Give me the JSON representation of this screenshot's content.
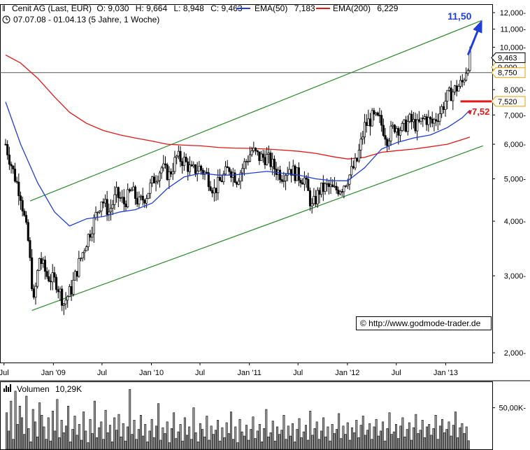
{
  "header": {
    "line1": {
      "instrument": "Cenit AG (Last, EUR)",
      "open": "O: 9,030",
      "high": "H: 9,664",
      "low": "L: 8,948",
      "close": "C: 9,463",
      "ema50_label": "EMA(50)",
      "ema50_value": "7,183",
      "ema200_label": "EMA(200)",
      "ema200_value": "6,229"
    },
    "line2": "07.07.08 - 01.04.13 (5 Jahre, 1 Woche)"
  },
  "volume_header": {
    "label": "Volumen",
    "value": "10,29K"
  },
  "watermark": "© http://www.godmode-trader.de",
  "annotations": {
    "target": "11,50",
    "support": "7,52"
  },
  "price_labels": {
    "last": "9,463",
    "hidden": "9,000",
    "resistance": "8,750",
    "support": "7,520"
  },
  "colors": {
    "ema50": "#1f3fd6",
    "ema200": "#e01818",
    "channel": "#2a8a2a",
    "target_arrow": "#1f3fd6",
    "support_marker": "#e01818",
    "price_label_border": "#e0a000",
    "bars": "#000000",
    "volume_fill": "#a0a0a0"
  },
  "chart_data": {
    "type": "candlestick",
    "scale": "log",
    "ylim": [
      1.9,
      12.5
    ],
    "y_ticks": [
      "2,000-",
      "3,000-",
      "4,000-",
      "5,000-",
      "6,000-",
      "7,000-",
      "8,000-",
      "9,000-",
      "10,000-",
      "11,000-",
      "12,000-"
    ],
    "y_tick_values": [
      2,
      3,
      4,
      5,
      6,
      7,
      8,
      9,
      10,
      11,
      12
    ],
    "x_ticks": [
      "Jul",
      "Jan '09",
      "Jul",
      "Jan '10",
      "Jul",
      "Jan '11",
      "Jul",
      "Jan '12",
      "Jul",
      "Jan '13"
    ],
    "x_tick_dates": [
      "2008-07-01",
      "2009-01-01",
      "2009-07-01",
      "2010-01-01",
      "2010-07-01",
      "2011-01-01",
      "2011-07-01",
      "2012-01-01",
      "2012-07-01",
      "2013-01-01"
    ],
    "date_range": [
      "2008-07-07",
      "2013-04-01"
    ],
    "close_path": [
      [
        "2008-07-07",
        6.0
      ],
      [
        "2008-08-04",
        5.2
      ],
      [
        "2008-09-01",
        4.6
      ],
      [
        "2008-09-29",
        3.6
      ],
      [
        "2008-10-20",
        2.6
      ],
      [
        "2008-11-10",
        3.3
      ],
      [
        "2008-12-08",
        3.0
      ],
      [
        "2009-01-12",
        2.9
      ],
      [
        "2009-02-09",
        2.6
      ],
      [
        "2009-03-09",
        2.8
      ],
      [
        "2009-04-06",
        3.2
      ],
      [
        "2009-05-04",
        3.6
      ],
      [
        "2009-06-01",
        4.0
      ],
      [
        "2009-06-29",
        4.5
      ],
      [
        "2009-07-27",
        4.2
      ],
      [
        "2009-08-24",
        4.6
      ],
      [
        "2009-09-21",
        4.4
      ],
      [
        "2009-10-19",
        4.7
      ],
      [
        "2009-11-16",
        4.4
      ],
      [
        "2009-12-14",
        4.6
      ],
      [
        "2010-01-11",
        5.0
      ],
      [
        "2010-02-08",
        5.3
      ],
      [
        "2010-03-08",
        5.1
      ],
      [
        "2010-04-05",
        5.6
      ],
      [
        "2010-05-03",
        5.5
      ],
      [
        "2010-05-31",
        5.2
      ],
      [
        "2010-06-28",
        5.3
      ],
      [
        "2010-07-26",
        5.1
      ],
      [
        "2010-08-23",
        4.7
      ],
      [
        "2010-09-20",
        5.0
      ],
      [
        "2010-10-18",
        5.3
      ],
      [
        "2010-11-15",
        5.0
      ],
      [
        "2010-12-13",
        5.4
      ],
      [
        "2011-01-10",
        5.8
      ],
      [
        "2011-02-07",
        5.6
      ],
      [
        "2011-03-07",
        5.6
      ],
      [
        "2011-04-04",
        5.3
      ],
      [
        "2011-05-02",
        5.1
      ],
      [
        "2011-05-30",
        5.3
      ],
      [
        "2011-06-27",
        5.1
      ],
      [
        "2011-07-25",
        5.0
      ],
      [
        "2011-08-22",
        4.3
      ],
      [
        "2011-09-19",
        4.7
      ],
      [
        "2011-10-17",
        4.8
      ],
      [
        "2011-11-14",
        4.7
      ],
      [
        "2011-12-12",
        4.8
      ],
      [
        "2012-01-09",
        5.1
      ],
      [
        "2012-02-06",
        5.5
      ],
      [
        "2012-03-05",
        6.6
      ],
      [
        "2012-04-02",
        6.9
      ],
      [
        "2012-04-30",
        6.8
      ],
      [
        "2012-05-28",
        6.2
      ],
      [
        "2012-06-25",
        6.6
      ],
      [
        "2012-07-23",
        6.5
      ],
      [
        "2012-08-20",
        6.8
      ],
      [
        "2012-09-17",
        6.6
      ],
      [
        "2012-10-15",
        6.9
      ],
      [
        "2012-11-12",
        6.7
      ],
      [
        "2012-12-10",
        7.1
      ],
      [
        "2013-01-07",
        7.7
      ],
      [
        "2013-02-04",
        8.0
      ],
      [
        "2013-03-04",
        8.3
      ],
      [
        "2013-03-25",
        9.2
      ],
      [
        "2013-04-01",
        9.463
      ]
    ],
    "ema50_path": [
      [
        "2008-07-07",
        7.5
      ],
      [
        "2008-09-01",
        6.0
      ],
      [
        "2008-11-03",
        4.9
      ],
      [
        "2009-01-05",
        4.2
      ],
      [
        "2009-03-02",
        3.9
      ],
      [
        "2009-05-04",
        4.05
      ],
      [
        "2009-07-06",
        4.1
      ],
      [
        "2009-09-07",
        4.2
      ],
      [
        "2009-11-02",
        4.25
      ],
      [
        "2010-01-04",
        4.4
      ],
      [
        "2010-03-01",
        4.75
      ],
      [
        "2010-05-03",
        5.05
      ],
      [
        "2010-07-05",
        5.15
      ],
      [
        "2010-09-06",
        5.1
      ],
      [
        "2010-11-01",
        5.1
      ],
      [
        "2011-01-03",
        5.15
      ],
      [
        "2011-03-07",
        5.2
      ],
      [
        "2011-05-02",
        5.15
      ],
      [
        "2011-07-04",
        5.1
      ],
      [
        "2011-09-05",
        5.0
      ],
      [
        "2011-11-07",
        4.95
      ],
      [
        "2012-01-02",
        4.95
      ],
      [
        "2012-03-05",
        5.3
      ],
      [
        "2012-05-07",
        5.85
      ],
      [
        "2012-07-02",
        6.05
      ],
      [
        "2012-09-03",
        6.2
      ],
      [
        "2012-11-05",
        6.3
      ],
      [
        "2013-01-07",
        6.55
      ],
      [
        "2013-03-04",
        6.9
      ],
      [
        "2013-04-01",
        7.183
      ]
    ],
    "ema200_path": [
      [
        "2008-07-07",
        9.6
      ],
      [
        "2008-09-01",
        9.2
      ],
      [
        "2008-11-03",
        8.5
      ],
      [
        "2009-01-05",
        7.7
      ],
      [
        "2009-03-02",
        7.1
      ],
      [
        "2009-05-04",
        6.7
      ],
      [
        "2009-07-06",
        6.45
      ],
      [
        "2009-09-07",
        6.3
      ],
      [
        "2009-11-02",
        6.2
      ],
      [
        "2010-01-04",
        6.1
      ],
      [
        "2010-03-01",
        6.0
      ],
      [
        "2010-05-03",
        5.97
      ],
      [
        "2010-07-05",
        5.95
      ],
      [
        "2010-09-06",
        5.9
      ],
      [
        "2010-11-01",
        5.88
      ],
      [
        "2011-01-03",
        5.87
      ],
      [
        "2011-03-07",
        5.85
      ],
      [
        "2011-05-02",
        5.82
      ],
      [
        "2011-07-04",
        5.78
      ],
      [
        "2011-09-05",
        5.72
      ],
      [
        "2011-11-07",
        5.62
      ],
      [
        "2012-01-02",
        5.55
      ],
      [
        "2012-03-05",
        5.6
      ],
      [
        "2012-05-07",
        5.75
      ],
      [
        "2012-07-02",
        5.8
      ],
      [
        "2012-09-03",
        5.85
      ],
      [
        "2012-11-05",
        5.92
      ],
      [
        "2013-01-07",
        6.0
      ],
      [
        "2013-03-04",
        6.15
      ],
      [
        "2013-04-01",
        6.229
      ]
    ],
    "horizontal_line": 8.75,
    "support_level": 7.52,
    "channel_upper": [
      [
        "2008-10-06",
        4.45
      ],
      [
        "2013-05-13",
        11.5
      ]
    ],
    "channel_lower": [
      [
        "2008-10-13",
        2.5
      ],
      [
        "2013-05-20",
        5.95
      ]
    ],
    "target_arrow": {
      "from": [
        "2013-03-25",
        9.6
      ],
      "to": [
        "2013-05-13",
        11.4
      ]
    },
    "volume_ticks": [
      "50,00K-"
    ],
    "volume_tick_values": [
      50000
    ],
    "volume_max": 80000,
    "volume": [
      44000,
      22000,
      58000,
      12000,
      70000,
      30000,
      52000,
      38000,
      18000,
      64000,
      25000,
      9000,
      48000,
      33000,
      15000,
      56000,
      41000,
      27000,
      12000,
      38000,
      10000,
      46000,
      22000,
      60000,
      14000,
      35000,
      20000,
      28000,
      52000,
      9000,
      24000,
      40000,
      17000,
      30000,
      11000,
      45000,
      22000,
      8000,
      36000,
      19000,
      58000,
      14000,
      26000,
      33000,
      12000,
      47000,
      20000,
      29000,
      9000,
      38000,
      23000,
      42000,
      15000,
      31000,
      10000,
      27000,
      72000,
      18000,
      35000,
      12000,
      24000,
      41000,
      16000,
      30000,
      9000,
      22000,
      36000,
      14000,
      28000,
      55000,
      11000,
      26000,
      19000,
      33000,
      8000,
      25000,
      44000,
      13000,
      21000,
      30000,
      10000,
      38000,
      17000,
      27000,
      12000,
      50000,
      20000,
      9000,
      31000,
      24000,
      15000,
      40000,
      11000,
      28000,
      18000,
      23000,
      35000,
      10000,
      26000,
      14000,
      32000,
      19000,
      45000,
      12000,
      27000,
      8000,
      36000,
      21000,
      16000,
      29000,
      11000,
      24000,
      39000,
      13000,
      22000,
      30000,
      9000,
      25000,
      48000,
      15000,
      20000,
      34000,
      10000,
      27000,
      18000,
      23000,
      41000,
      12000,
      28000,
      16000,
      31000,
      9000,
      24000,
      37000,
      14000,
      21000,
      29000,
      11000,
      46000,
      17000,
      25000,
      33000,
      12000,
      22000,
      38000,
      15000,
      27000,
      10000,
      30000,
      19000,
      24000,
      43000,
      13000,
      28000,
      18000,
      32000,
      11000,
      26000,
      20000,
      35000,
      14000,
      29000,
      40000,
      17000,
      23000,
      31000,
      12000,
      27000,
      36000,
      16000,
      22000,
      33000,
      10000,
      25000,
      44000,
      18000,
      21000,
      30000,
      13000,
      28000,
      38000,
      15000,
      24000,
      32000,
      11000,
      26000,
      42000,
      19000,
      23000,
      35000,
      14000,
      27000,
      30000,
      17000,
      25000,
      41000,
      12000,
      28000,
      36000,
      20000,
      24000,
      33000,
      16000,
      29000,
      45000,
      14000,
      26000,
      31000,
      19000,
      27000,
      10290
    ]
  }
}
